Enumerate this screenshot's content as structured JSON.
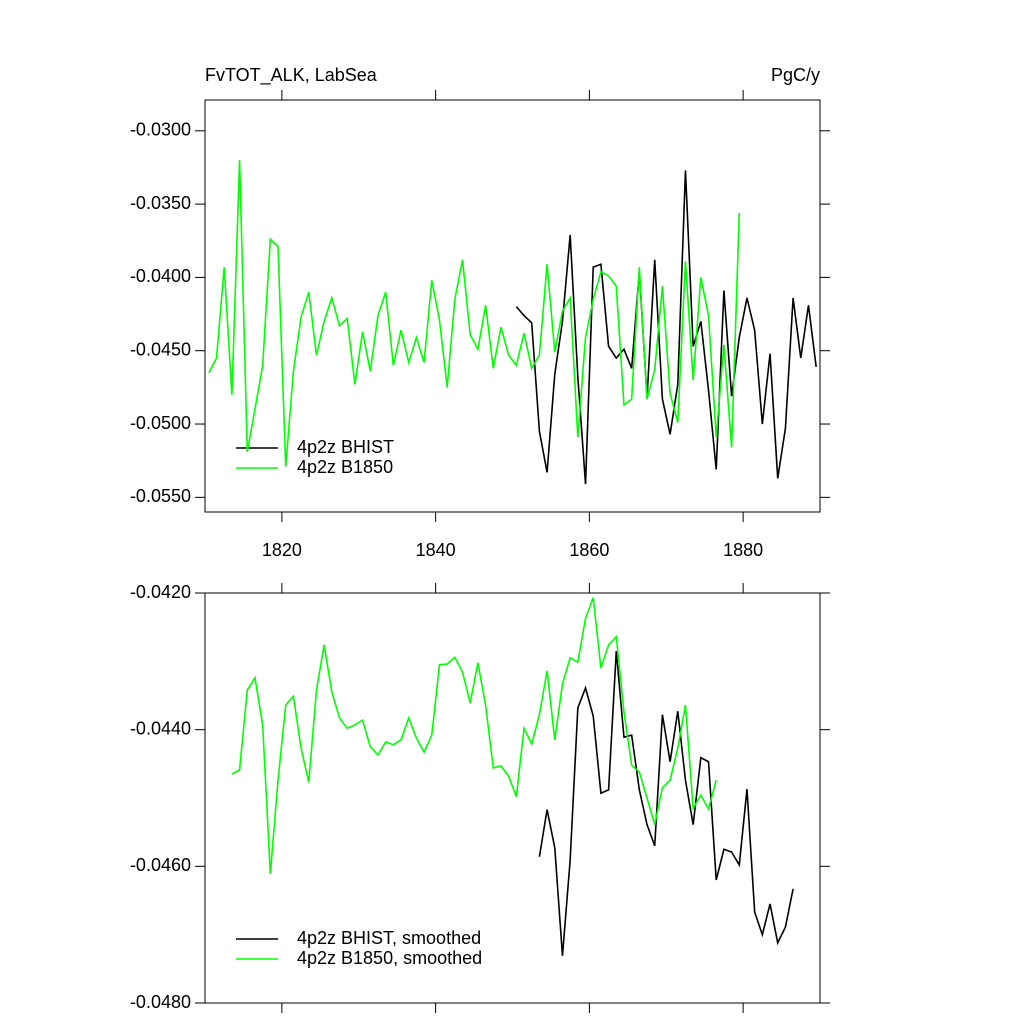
{
  "chart_data": [
    {
      "type": "line",
      "title": "FvTOT_ALK, LabSea",
      "unit_label": "PgC/y",
      "xlim": [
        1810,
        1890
      ],
      "ylim": [
        -0.056,
        -0.0279
      ],
      "xticks": [
        1820,
        1840,
        1860,
        1880
      ],
      "yticks": [
        {
          "value": -0.03,
          "label": "-0.0300"
        },
        {
          "value": -0.035,
          "label": "-0.0350"
        },
        {
          "value": -0.04,
          "label": "-0.0400"
        },
        {
          "value": -0.045,
          "label": "-0.0450"
        },
        {
          "value": -0.05,
          "label": "-0.0500"
        },
        {
          "value": -0.055,
          "label": "-0.0550"
        }
      ],
      "legend": "lower left",
      "series": [
        {
          "name": "4p2z BHIST",
          "color": "#000000",
          "x": [
            1850.5,
            1851.5,
            1852.5,
            1853.5,
            1854.5,
            1855.5,
            1856.5,
            1857.5,
            1858.5,
            1859.5,
            1860.5,
            1861.5,
            1862.5,
            1863.5,
            1864.5,
            1865.5,
            1866.5,
            1867.5,
            1868.5,
            1869.5,
            1870.5,
            1871.5,
            1872.5,
            1873.5,
            1874.5,
            1875.5,
            1876.5,
            1877.5,
            1878.5,
            1879.5,
            1880.5,
            1881.5,
            1882.5,
            1883.5,
            1884.5,
            1885.5,
            1886.5,
            1887.5,
            1888.5,
            1889.5
          ],
          "values": [
            -0.042,
            -0.0426,
            -0.0431,
            -0.0505,
            -0.0533,
            -0.0466,
            -0.043,
            -0.0371,
            -0.0468,
            -0.0541,
            -0.0393,
            -0.0391,
            -0.0447,
            -0.0455,
            -0.0449,
            -0.0462,
            -0.0396,
            -0.0482,
            -0.0388,
            -0.0483,
            -0.0507,
            -0.0473,
            -0.0327,
            -0.0447,
            -0.043,
            -0.0477,
            -0.0531,
            -0.0409,
            -0.0481,
            -0.0441,
            -0.0414,
            -0.0436,
            -0.05,
            -0.0452,
            -0.0537,
            -0.0503,
            -0.0414,
            -0.0455,
            -0.0419,
            -0.0461
          ]
        },
        {
          "name": "4p2z B1850",
          "color": "#00ff00",
          "x": [
            1810.5,
            1811.5,
            1812.5,
            1813.5,
            1814.5,
            1815.5,
            1816.5,
            1817.5,
            1818.5,
            1819.5,
            1820.5,
            1821.5,
            1822.5,
            1823.5,
            1824.5,
            1825.5,
            1826.5,
            1827.5,
            1828.5,
            1829.5,
            1830.5,
            1831.5,
            1832.5,
            1833.5,
            1834.5,
            1835.5,
            1836.5,
            1837.5,
            1838.5,
            1839.5,
            1840.5,
            1841.5,
            1842.5,
            1843.5,
            1844.5,
            1845.5,
            1846.5,
            1847.5,
            1848.5,
            1849.5,
            1850.5,
            1851.5,
            1852.5,
            1853.5,
            1854.5,
            1855.5,
            1856.5,
            1857.5,
            1858.5,
            1859.5,
            1860.5,
            1861.5,
            1862.5,
            1863.5,
            1864.5,
            1865.5,
            1866.5,
            1867.5,
            1868.5,
            1869.5,
            1870.5,
            1871.5,
            1872.5,
            1873.5,
            1874.5,
            1875.5,
            1876.5,
            1877.5,
            1878.5,
            1879.5
          ],
          "values": [
            -0.0465,
            -0.0455,
            -0.0393,
            -0.048,
            -0.032,
            -0.0519,
            -0.049,
            -0.046,
            -0.0374,
            -0.0379,
            -0.0529,
            -0.0464,
            -0.0427,
            -0.041,
            -0.0453,
            -0.043,
            -0.0414,
            -0.0433,
            -0.0428,
            -0.0473,
            -0.0437,
            -0.0464,
            -0.0426,
            -0.041,
            -0.046,
            -0.0436,
            -0.0458,
            -0.0441,
            -0.0458,
            -0.0402,
            -0.0429,
            -0.0475,
            -0.0415,
            -0.0388,
            -0.0439,
            -0.0449,
            -0.0419,
            -0.0462,
            -0.0434,
            -0.0453,
            -0.046,
            -0.0438,
            -0.0462,
            -0.0453,
            -0.0391,
            -0.0451,
            -0.0423,
            -0.0414,
            -0.0509,
            -0.0441,
            -0.0415,
            -0.0396,
            -0.0399,
            -0.0406,
            -0.0487,
            -0.0483,
            -0.0393,
            -0.0483,
            -0.0463,
            -0.0406,
            -0.0479,
            -0.0499,
            -0.0389,
            -0.047,
            -0.04,
            -0.0426,
            -0.0509,
            -0.0446,
            -0.0516,
            -0.0356
          ]
        }
      ]
    },
    {
      "type": "line",
      "xlim": [
        1810,
        1890
      ],
      "ylim": [
        -0.048,
        -0.042
      ],
      "xticks": [
        1820,
        1840,
        1860,
        1880
      ],
      "yticks": [
        {
          "value": -0.042,
          "label": "-0.0420"
        },
        {
          "value": -0.044,
          "label": "-0.0440"
        },
        {
          "value": -0.046,
          "label": "-0.0460"
        },
        {
          "value": -0.048,
          "label": "-0.0480"
        }
      ],
      "legend": "lower left",
      "series": [
        {
          "name": "4p2z BHIST, smoothed",
          "color": "#000000",
          "x": [
            1853.5,
            1854.5,
            1855.5,
            1856.5,
            1857.5,
            1858.5,
            1859.5,
            1860.5,
            1861.5,
            1862.5,
            1863.5,
            1864.5,
            1865.5,
            1866.5,
            1867.5,
            1868.5,
            1869.5,
            1870.5,
            1871.5,
            1872.5,
            1873.5,
            1874.5,
            1875.5,
            1876.5,
            1877.5,
            1878.5,
            1879.5,
            1880.5,
            1881.5,
            1882.5,
            1883.5,
            1884.5,
            1885.5,
            1886.5
          ],
          "values": [
            -0.04586,
            -0.04517,
            -0.04573,
            -0.04731,
            -0.04591,
            -0.04368,
            -0.04339,
            -0.0438,
            -0.04493,
            -0.04488,
            -0.04285,
            -0.04411,
            -0.04408,
            -0.04488,
            -0.04539,
            -0.0457,
            -0.04378,
            -0.04447,
            -0.04373,
            -0.04474,
            -0.04539,
            -0.04441,
            -0.04447,
            -0.0462,
            -0.04575,
            -0.04579,
            -0.04598,
            -0.04487,
            -0.04667,
            -0.047,
            -0.04655,
            -0.04712,
            -0.04689,
            -0.04633
          ]
        },
        {
          "name": "4p2z B1850, smoothed",
          "color": "#00ff00",
          "x": [
            1813.5,
            1814.5,
            1815.5,
            1816.5,
            1817.5,
            1818.5,
            1819.5,
            1820.5,
            1821.5,
            1822.5,
            1823.5,
            1824.5,
            1825.5,
            1826.5,
            1827.5,
            1828.5,
            1829.5,
            1830.5,
            1831.5,
            1832.5,
            1833.5,
            1834.5,
            1835.5,
            1836.5,
            1837.5,
            1838.5,
            1839.5,
            1840.5,
            1841.5,
            1842.5,
            1843.5,
            1844.5,
            1845.5,
            1846.5,
            1847.5,
            1848.5,
            1849.5,
            1850.5,
            1851.5,
            1852.5,
            1853.5,
            1854.5,
            1855.5,
            1856.5,
            1857.5,
            1858.5,
            1859.5,
            1860.5,
            1861.5,
            1862.5,
            1863.5,
            1864.5,
            1865.5,
            1866.5,
            1867.5,
            1868.5,
            1869.5,
            1870.5,
            1871.5,
            1872.5,
            1873.5,
            1874.5,
            1875.5,
            1876.5
          ],
          "values": [
            -0.04465,
            -0.04459,
            -0.04342,
            -0.04324,
            -0.04393,
            -0.04611,
            -0.04474,
            -0.04364,
            -0.04351,
            -0.04427,
            -0.04477,
            -0.04342,
            -0.04276,
            -0.04345,
            -0.04383,
            -0.04398,
            -0.04393,
            -0.04386,
            -0.04425,
            -0.04437,
            -0.04418,
            -0.04422,
            -0.04415,
            -0.04383,
            -0.04412,
            -0.04433,
            -0.04408,
            -0.04305,
            -0.04304,
            -0.04294,
            -0.04316,
            -0.04361,
            -0.04302,
            -0.04364,
            -0.04456,
            -0.04453,
            -0.04468,
            -0.04498,
            -0.04398,
            -0.04421,
            -0.04378,
            -0.04314,
            -0.04415,
            -0.04333,
            -0.04295,
            -0.04301,
            -0.04237,
            -0.04207,
            -0.0431,
            -0.04276,
            -0.04264,
            -0.04374,
            -0.04452,
            -0.04462,
            -0.045,
            -0.04539,
            -0.04485,
            -0.04474,
            -0.04427,
            -0.04364,
            -0.04515,
            -0.04496,
            -0.04516,
            -0.04474
          ]
        }
      ]
    }
  ]
}
